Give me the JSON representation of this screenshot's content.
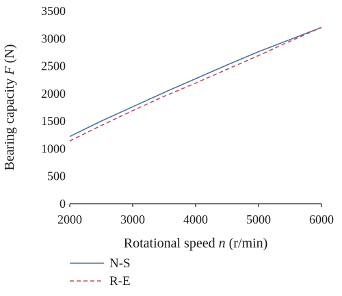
{
  "chart_data": {
    "type": "line",
    "title": "",
    "xlabel": "Rotational speed n (r/min)",
    "xlabel_parts": {
      "pre": "Rotational speed ",
      "italic": "n",
      "post": " (r/min)"
    },
    "ylabel": "Bearing capacity F (N)",
    "ylabel_parts": {
      "pre": "Bearing capacity ",
      "italic": "F",
      "post": " (N)"
    },
    "xlim": [
      2000,
      6000
    ],
    "ylim": [
      0,
      3500
    ],
    "xticks": [
      "2000",
      "3000",
      "4000",
      "5000",
      "6000"
    ],
    "yticks": [
      "0",
      "500",
      "1000",
      "1500",
      "2000",
      "2500",
      "3000",
      "3500"
    ],
    "grid": false,
    "legend_placement": "bottom-left",
    "series": [
      {
        "name": "N-S",
        "color": "#4a72b0",
        "dash": "solid",
        "x": [
          2000,
          2500,
          3000,
          3500,
          4000,
          4500,
          5000,
          5500,
          6000
        ],
        "y": [
          1220,
          1500,
          1760,
          2020,
          2270,
          2520,
          2760,
          2980,
          3200
        ]
      },
      {
        "name": "R-E",
        "color": "#c0504d",
        "dash": "dashed",
        "x": [
          2000,
          2500,
          3000,
          3500,
          4000,
          4500,
          5000,
          5500,
          6000
        ],
        "y": [
          1140,
          1420,
          1690,
          1950,
          2190,
          2440,
          2690,
          2950,
          3200
        ]
      }
    ]
  }
}
